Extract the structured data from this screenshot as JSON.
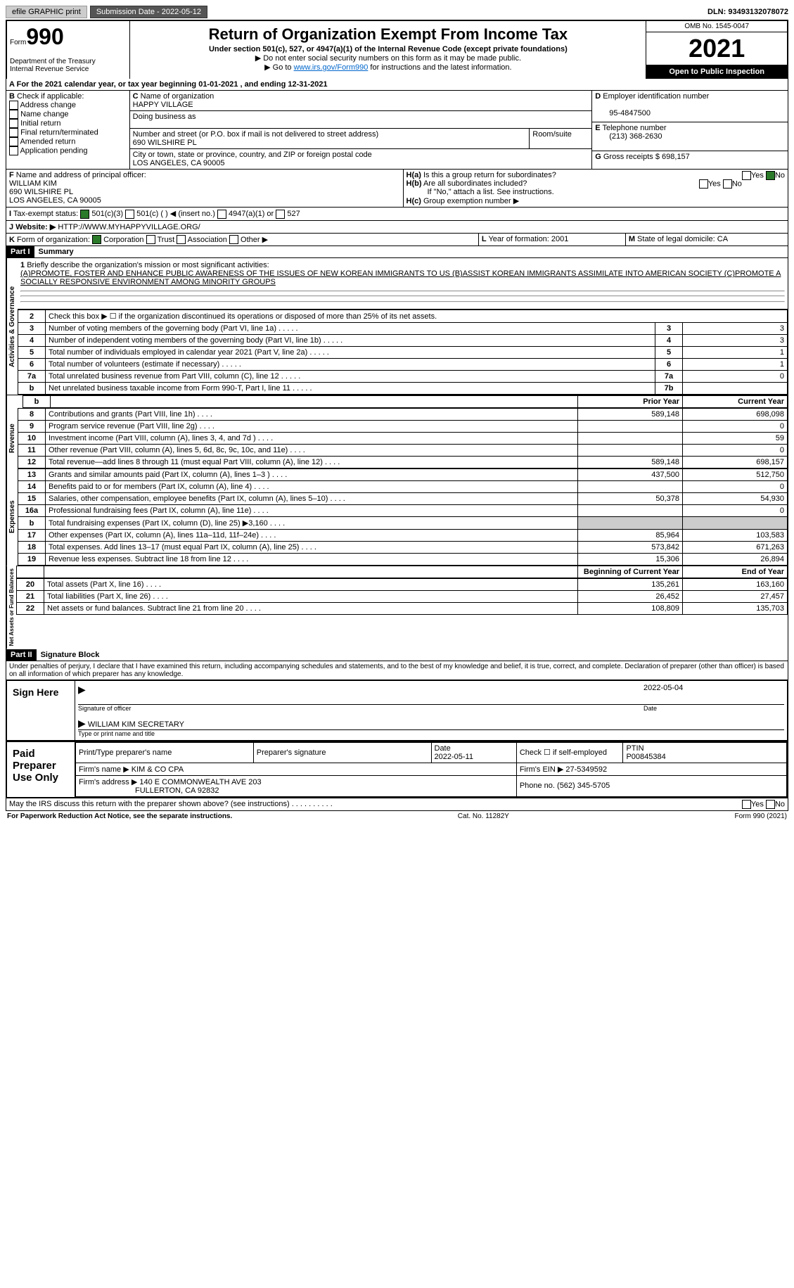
{
  "topbar": {
    "efile": "efile GRAPHIC print",
    "sub": "Submission Date - 2022-05-12",
    "dln": "DLN: 93493132078072"
  },
  "hdr": {
    "form": "Form",
    "num": "990",
    "dept": "Department of the Treasury",
    "irs": "Internal Revenue Service",
    "title": "Return of Organization Exempt From Income Tax",
    "sub": "Under section 501(c), 527, or 4947(a)(1) of the Internal Revenue Code (except private foundations)",
    "note1": "▶ Do not enter social security numbers on this form as it may be made public.",
    "note2": "▶ Go to ",
    "link": "www.irs.gov/Form990",
    "note3": " for instructions and the latest information.",
    "omb": "OMB No. 1545-0047",
    "year": "2021",
    "open": "Open to Public Inspection"
  },
  "A": {
    "text": "For the 2021 calendar year, or tax year beginning 01-01-2021    , and ending 12-31-2021"
  },
  "B": {
    "label": "Check if applicable:",
    "opts": [
      "Address change",
      "Name change",
      "Initial return",
      "Final return/terminated",
      "Amended return",
      "Application pending"
    ]
  },
  "C": {
    "name_lbl": "Name of organization",
    "name": "HAPPY VILLAGE",
    "dba": "Doing business as",
    "addr_lbl": "Number and street (or P.O. box if mail is not delivered to street address)",
    "addr": "690 WILSHIRE PL",
    "room": "Room/suite",
    "city_lbl": "City or town, state or province, country, and ZIP or foreign postal code",
    "city": "LOS ANGELES, CA  90005"
  },
  "D": {
    "lbl": "Employer identification number",
    "val": "95-4847500"
  },
  "E": {
    "lbl": "Telephone number",
    "val": "(213) 368-2630"
  },
  "G": {
    "lbl": "Gross receipts $",
    "val": "698,157"
  },
  "F": {
    "lbl": "Name and address of principal officer:",
    "name": "WILLIAM KIM",
    "addr": "690 WILSHIRE PL",
    "city": "LOS ANGELES, CA  90005"
  },
  "H": {
    "a": "Is this a group return for subordinates?",
    "b": "Are all subordinates included?",
    "note": "If \"No,\" attach a list. See instructions.",
    "c": "Group exemption number ▶"
  },
  "I": {
    "lbl": "Tax-exempt status:",
    "o1": "501(c)(3)",
    "o2": "501(c) (  ) ◀ (insert no.)",
    "o3": "4947(a)(1) or",
    "o4": "527"
  },
  "J": {
    "lbl": "Website: ▶",
    "val": "HTTP://WWW.MYHAPPYVILLAGE.ORG/"
  },
  "K": {
    "lbl": "Form of organization:",
    "o1": "Corporation",
    "o2": "Trust",
    "o3": "Association",
    "o4": "Other ▶"
  },
  "L": {
    "lbl": "Year of formation:",
    "val": "2001"
  },
  "M": {
    "lbl": "State of legal domicile:",
    "val": "CA"
  },
  "p1": {
    "hdr": "Part I",
    "title": "Summary"
  },
  "mission": {
    "lbl": "Briefly describe the organization's mission or most significant activities:",
    "text": "(A)PROMOTE, FOSTER AND ENHANCE PUBLIC AWARENESS OF THE ISSUES OF NEW KOREAN IMMIGRANTS TO US (B)ASSIST KOREAN IMMIGRANTS ASSIMILATE INTO AMERICAN SOCIETY (C)PROMOTE A SOCIALLY RESPONSIVE ENVIRONMENT AMONG MINORITY GROUPS"
  },
  "gov": {
    "label": "Activities & Governance",
    "rows": [
      {
        "n": "2",
        "t": "Check this box ▶ ☐ if the organization discontinued its operations or disposed of more than 25% of its net assets."
      },
      {
        "n": "3",
        "t": "Number of voting members of the governing body (Part VI, line 1a)",
        "box": "3",
        "v": "3"
      },
      {
        "n": "4",
        "t": "Number of independent voting members of the governing body (Part VI, line 1b)",
        "box": "4",
        "v": "3"
      },
      {
        "n": "5",
        "t": "Total number of individuals employed in calendar year 2021 (Part V, line 2a)",
        "box": "5",
        "v": "1"
      },
      {
        "n": "6",
        "t": "Total number of volunteers (estimate if necessary)",
        "box": "6",
        "v": "1"
      },
      {
        "n": "7a",
        "t": "Total unrelated business revenue from Part VIII, column (C), line 12",
        "box": "7a",
        "v": "0"
      },
      {
        "n": "b",
        "t": "Net unrelated business taxable income from Form 990-T, Part I, line 11",
        "box": "7b",
        "v": ""
      }
    ]
  },
  "cols": {
    "py": "Prior Year",
    "cy": "Current Year"
  },
  "rev": {
    "label": "Revenue",
    "rows": [
      {
        "n": "8",
        "t": "Contributions and grants (Part VIII, line 1h)",
        "py": "589,148",
        "cy": "698,098"
      },
      {
        "n": "9",
        "t": "Program service revenue (Part VIII, line 2g)",
        "py": "",
        "cy": "0"
      },
      {
        "n": "10",
        "t": "Investment income (Part VIII, column (A), lines 3, 4, and 7d )",
        "py": "",
        "cy": "59"
      },
      {
        "n": "11",
        "t": "Other revenue (Part VIII, column (A), lines 5, 6d, 8c, 9c, 10c, and 11e)",
        "py": "",
        "cy": "0"
      },
      {
        "n": "12",
        "t": "Total revenue—add lines 8 through 11 (must equal Part VIII, column (A), line 12)",
        "py": "589,148",
        "cy": "698,157"
      }
    ]
  },
  "exp": {
    "label": "Expenses",
    "rows": [
      {
        "n": "13",
        "t": "Grants and similar amounts paid (Part IX, column (A), lines 1–3 )",
        "py": "437,500",
        "cy": "512,750"
      },
      {
        "n": "14",
        "t": "Benefits paid to or for members (Part IX, column (A), line 4)",
        "py": "",
        "cy": "0"
      },
      {
        "n": "15",
        "t": "Salaries, other compensation, employee benefits (Part IX, column (A), lines 5–10)",
        "py": "50,378",
        "cy": "54,930"
      },
      {
        "n": "16a",
        "t": "Professional fundraising fees (Part IX, column (A), line 11e)",
        "py": "",
        "cy": "0"
      },
      {
        "n": "b",
        "t": "Total fundraising expenses (Part IX, column (D), line 25) ▶3,160",
        "py": "gray",
        "cy": "gray"
      },
      {
        "n": "17",
        "t": "Other expenses (Part IX, column (A), lines 11a–11d, 11f–24e)",
        "py": "85,964",
        "cy": "103,583"
      },
      {
        "n": "18",
        "t": "Total expenses. Add lines 13–17 (must equal Part IX, column (A), line 25)",
        "py": "573,842",
        "cy": "671,263"
      },
      {
        "n": "19",
        "t": "Revenue less expenses. Subtract line 18 from line 12",
        "py": "15,306",
        "cy": "26,894"
      }
    ]
  },
  "net": {
    "label": "Net Assets or Fund Balances",
    "hdr": {
      "py": "Beginning of Current Year",
      "cy": "End of Year"
    },
    "rows": [
      {
        "n": "20",
        "t": "Total assets (Part X, line 16)",
        "py": "135,261",
        "cy": "163,160"
      },
      {
        "n": "21",
        "t": "Total liabilities (Part X, line 26)",
        "py": "26,452",
        "cy": "27,457"
      },
      {
        "n": "22",
        "t": "Net assets or fund balances. Subtract line 21 from line 20",
        "py": "108,809",
        "cy": "135,703"
      }
    ]
  },
  "p2": {
    "hdr": "Part II",
    "title": "Signature Block",
    "decl": "Under penalties of perjury, I declare that I have examined this return, including accompanying schedules and statements, and to the best of my knowledge and belief, it is true, correct, and complete. Declaration of preparer (other than officer) is based on all information of which preparer has any knowledge."
  },
  "sign": {
    "lbl": "Sign Here",
    "sig": "Signature of officer",
    "date": "2022-05-04",
    "name": "WILLIAM KIM SECRETARY",
    "name_lbl": "Type or print name and title"
  },
  "prep": {
    "lbl": "Paid Preparer Use Only",
    "h1": "Print/Type preparer's name",
    "h2": "Preparer's signature",
    "h3": "Date",
    "date": "2022-05-11",
    "h4": "Check ☐ if self-employed",
    "h5": "PTIN",
    "ptin": "P00845384",
    "firm_lbl": "Firm's name    ▶",
    "firm": "KIM & CO CPA",
    "ein_lbl": "Firm's EIN ▶",
    "ein": "27-5349592",
    "addr_lbl": "Firm's address ▶",
    "addr": "140 E COMMONWEALTH AVE 203",
    "city": "FULLERTON, CA  92832",
    "ph_lbl": "Phone no.",
    "ph": "(562) 345-5705"
  },
  "discuss": "May the IRS discuss this return with the preparer shown above? (see instructions)",
  "foot": {
    "l": "For Paperwork Reduction Act Notice, see the separate instructions.",
    "m": "Cat. No. 11282Y",
    "r": "Form 990 (2021)"
  }
}
